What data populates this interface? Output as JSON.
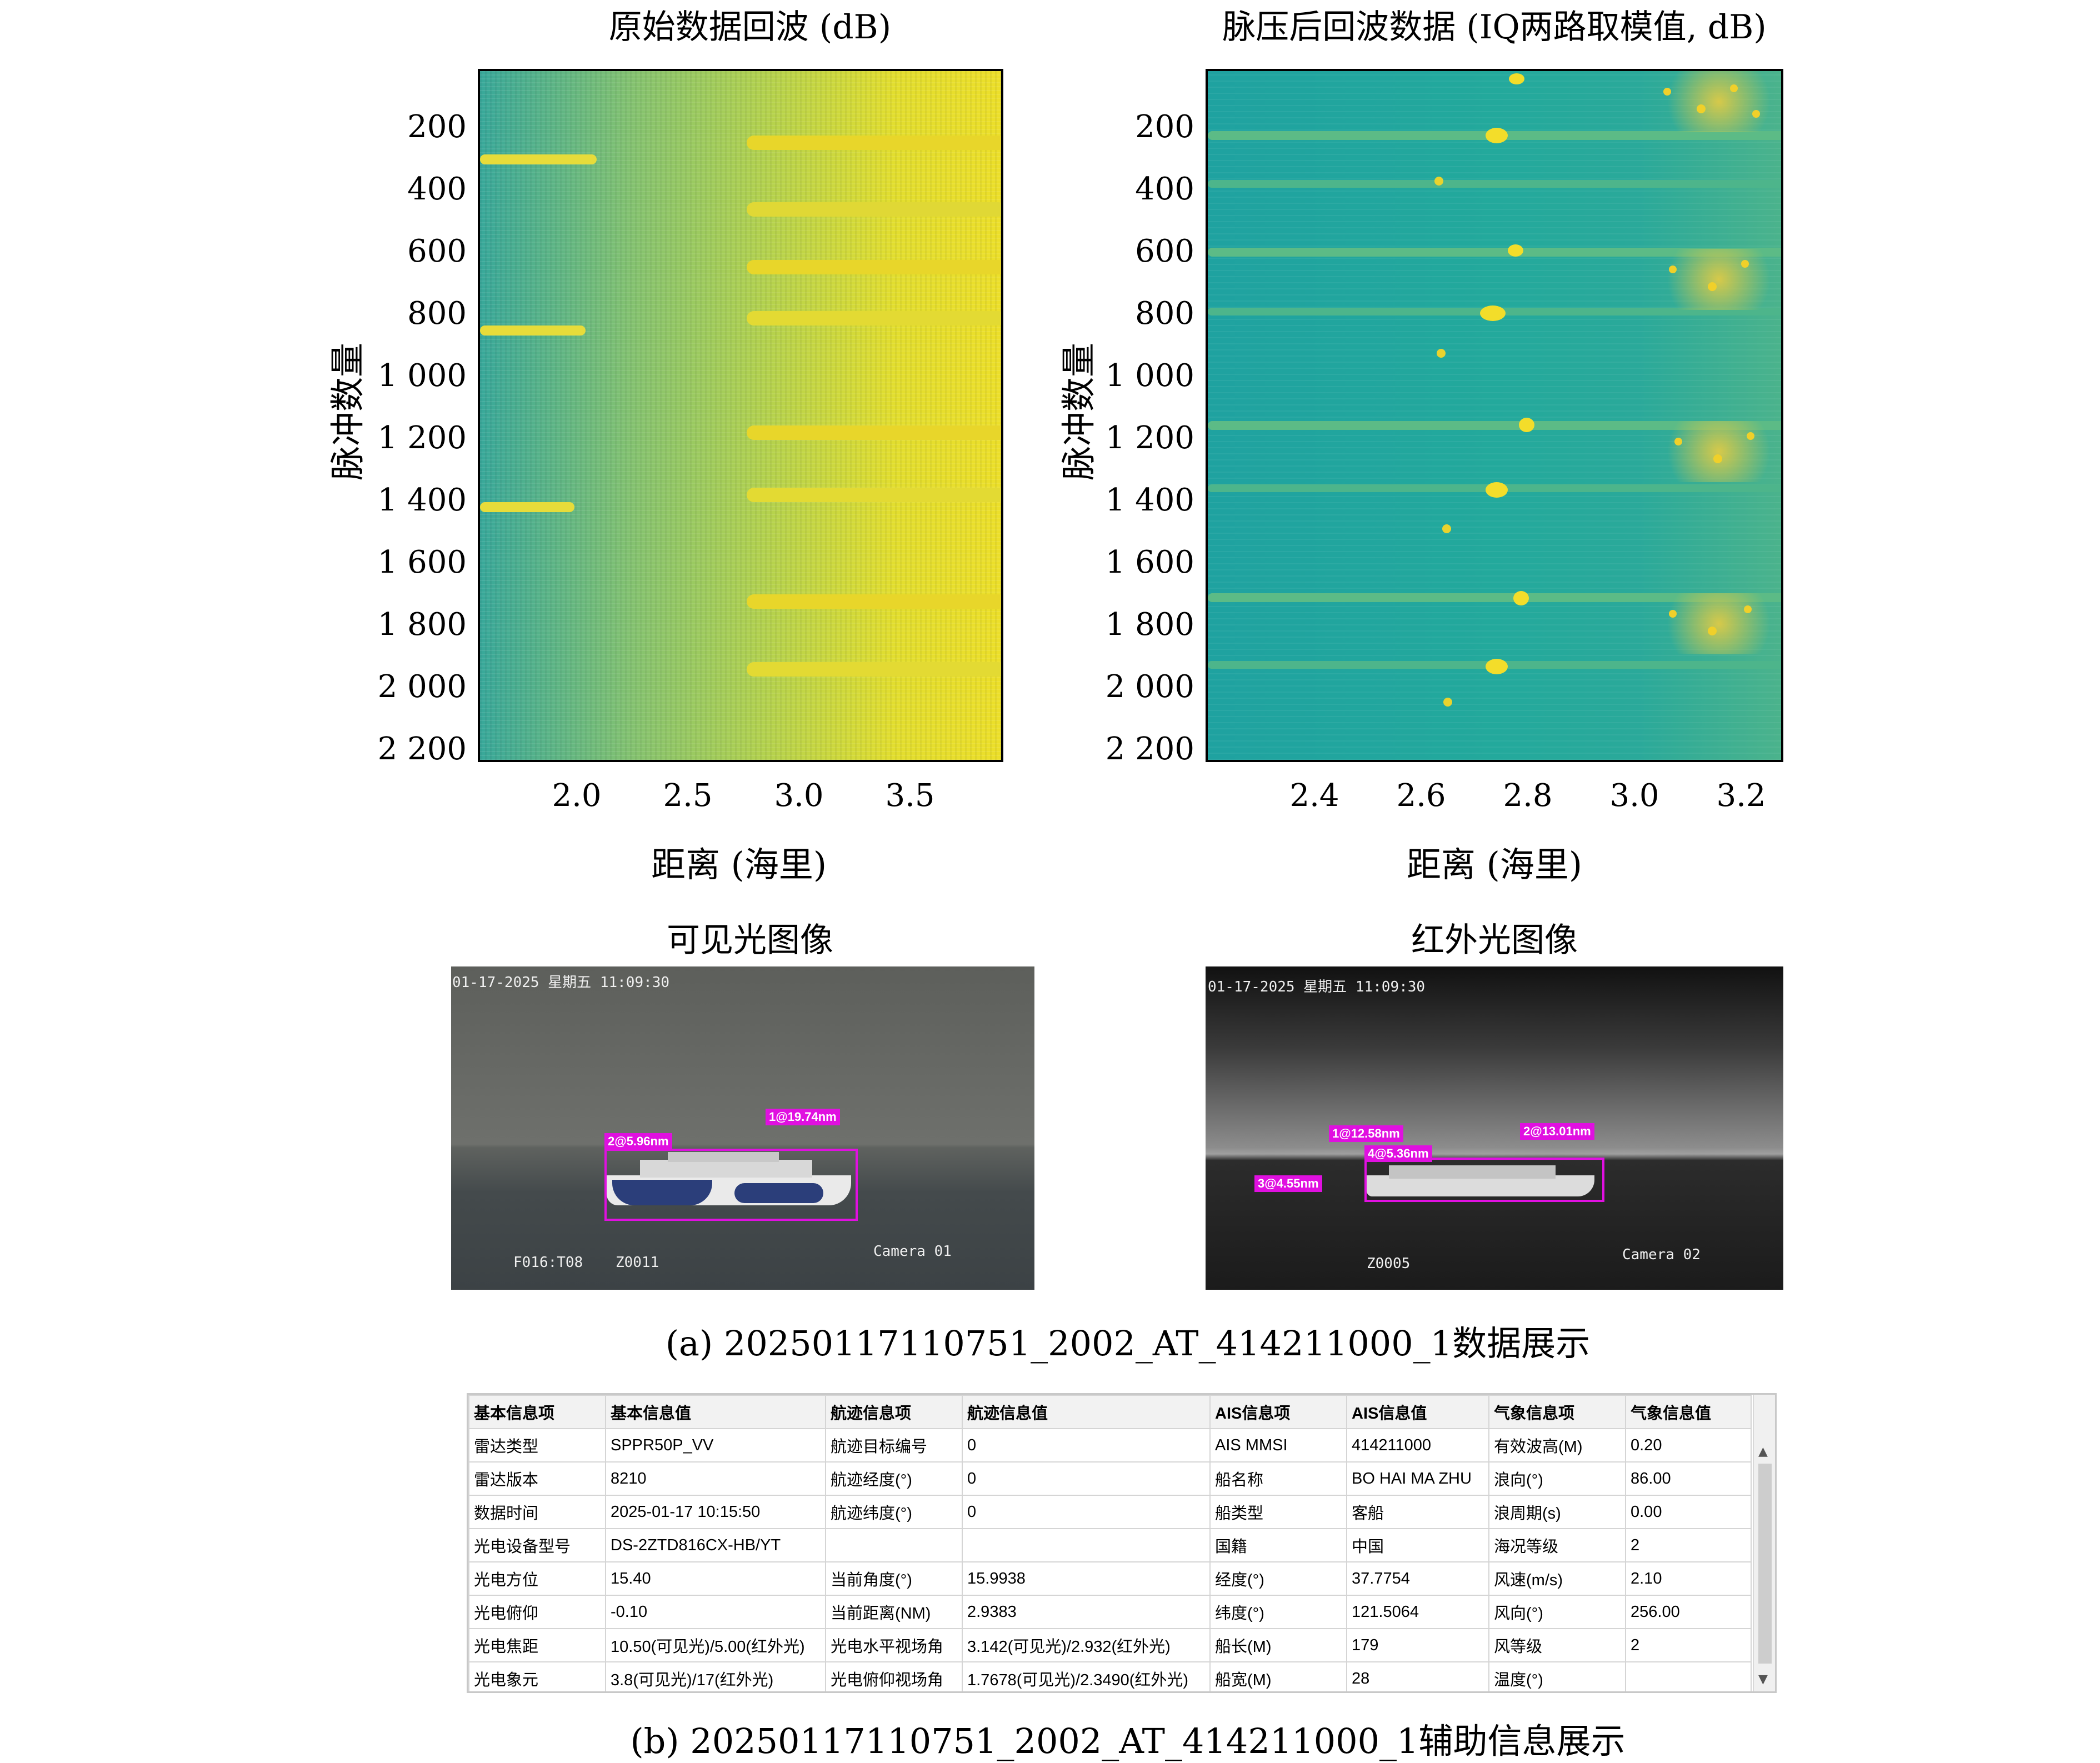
{
  "panel_a": {
    "raw": {
      "title": "原始数据回波 (dB)",
      "xlabel": "距离 (海里)",
      "ylabel": "脉冲数量",
      "yticks": [
        "200",
        "400",
        "600",
        "800",
        "1 000",
        "1 200",
        "1 400",
        "1 600",
        "1 800",
        "2 000",
        "2 200"
      ],
      "xticks": [
        "2.0",
        "2.5",
        "3.0",
        "3.5"
      ]
    },
    "pc": {
      "title": "脉压后回波数据 (IQ两路取模值, dB)",
      "xlabel": "距离 (海里)",
      "ylabel": "脉冲数量",
      "yticks": [
        "200",
        "400",
        "600",
        "800",
        "1 000",
        "1 200",
        "1 400",
        "1 600",
        "1 800",
        "2 000",
        "2 200"
      ],
      "xticks": [
        "2.4",
        "2.6",
        "2.8",
        "3.0",
        "3.2"
      ]
    },
    "visible": {
      "title": "可见光图像",
      "timestamp": "01-17-2025 星期五 11:09:30",
      "label1": "1@19.74nm",
      "label2": "2@5.96nm",
      "footer_left": "F016:T08",
      "footer_mid": "Z0011",
      "camera": "Camera 01"
    },
    "infrared": {
      "title": "红外光图像",
      "timestamp": "01-17-2025 星期五 11:09:30",
      "label1": "1@12.58nm",
      "label2": "2@13.01nm",
      "label3": "3@4.55nm",
      "label4": "4@5.36nm",
      "footer_mid": "Z0005",
      "camera": "Camera 02"
    },
    "caption": "(a) 20250117110751_2002_AT_414211000_1数据展示"
  },
  "panel_b": {
    "headers": [
      "基本信息项",
      "基本信息值",
      "航迹信息项",
      "航迹信息值",
      "AIS信息项",
      "AIS信息值",
      "气象信息项",
      "气象信息值"
    ],
    "rows": [
      [
        "雷达类型",
        "SPPR50P_VV",
        "航迹目标编号",
        "0",
        "AIS MMSI",
        "414211000",
        "有效波高(M)",
        "0.20"
      ],
      [
        "雷达版本",
        "8210",
        "航迹经度(°)",
        "0",
        "船名称",
        "BO HAI MA ZHU",
        "浪向(°)",
        "86.00"
      ],
      [
        "数据时间",
        "2025-01-17 10:15:50",
        "航迹纬度(°)",
        "0",
        "船类型",
        "客船",
        "浪周期(s)",
        "0.00"
      ],
      [
        "光电设备型号",
        "DS-2ZTD816CX-HB/YT",
        "",
        "",
        "国籍",
        "中国",
        "海况等级",
        "2"
      ],
      [
        "光电方位",
        "15.40",
        "当前角度(°)",
        "15.9938",
        "经度(°)",
        "37.7754",
        "风速(m/s)",
        "2.10"
      ],
      [
        "光电俯仰",
        "-0.10",
        "当前距离(NM)",
        "2.9383",
        "纬度(°)",
        "121.5064",
        "风向(°)",
        "256.00"
      ],
      [
        "光电焦距",
        "10.50(可见光)/5.00(红外光)",
        "光电水平视场角",
        "3.142(可见光)/2.932(红外光)",
        "船长(M)",
        "179",
        "风等级",
        "2"
      ],
      [
        "光电象元",
        "3.8(可见光)/17(红外光)",
        "光电俯仰视场角",
        "1.7678(可见光)/2.3490(红外光)",
        "船宽(M)",
        "28",
        "温度(°)",
        ""
      ]
    ],
    "caption": "(b) 20250117110751_2002_AT_414211000_1辅助信息展示"
  }
}
